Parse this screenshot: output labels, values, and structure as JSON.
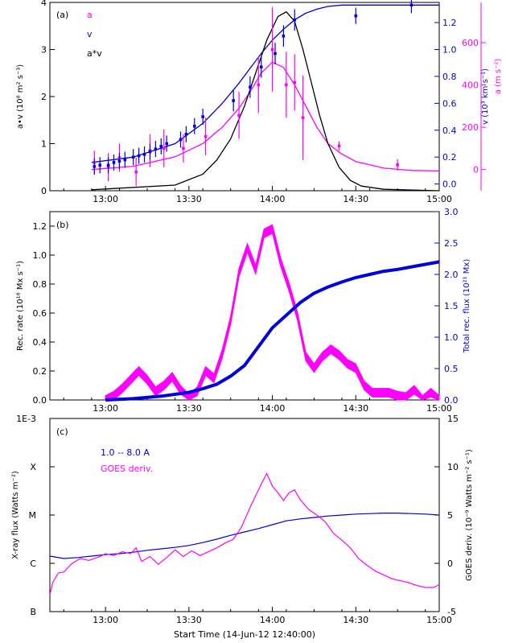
{
  "colors": {
    "magenta": "#ff00ff",
    "blue": "#0000dd",
    "black": "#000000"
  },
  "chart_data": [
    {
      "id": "a",
      "type": "scatter",
      "panel_label": "(a)",
      "ylabel_left": "a•v (10⁸ m² s⁻³)",
      "ylabel_right_blue": "v (10³ km s⁻¹)",
      "x_ticks": [
        "13:00",
        "13:30",
        "14:00",
        "14:30",
        "15:00"
      ],
      "xlim_min": [
        12.5,
        140
      ],
      "ylim_left": [
        0,
        4
      ],
      "yticks_left": [
        "0",
        "1",
        "2",
        "3",
        "4"
      ],
      "ylim_right_blue": [
        -0.05,
        1.35
      ],
      "yticks_right_blue": [
        "0.0",
        "0.2",
        "0.4",
        "0.6",
        "0.8",
        "1.0",
        "1.2"
      ],
      "ylim_right_magenta": [
        -100,
        790
      ],
      "yticks_right_magenta": [
        "0",
        "200",
        "400",
        "600"
      ],
      "right_magenta_partial_label": "a (m s⁻²)",
      "legend": [
        {
          "label": "a",
          "color": "#ff00ff"
        },
        {
          "label": "v",
          "color": "#0000dd"
        },
        {
          "label": "a*v",
          "color": "#000000"
        }
      ],
      "series": [
        {
          "name": "a",
          "kind": "points",
          "color": "#ff00ff",
          "x": [
            16,
            21,
            25,
            31,
            36,
            41,
            48,
            56,
            68,
            75,
            80,
            85,
            88,
            91,
            104,
            125
          ],
          "y": [
            0.6,
            0.5,
            0.7,
            0.4,
            0.85,
            0.9,
            0.9,
            1.15,
            1.6,
            2.25,
            3.0,
            2.25,
            2.3,
            1.55,
            0.95,
            0.55
          ],
          "err": [
            0.25,
            0.3,
            0.3,
            0.3,
            0.35,
            0.4,
            0.3,
            0.4,
            0.5,
            0.6,
            0.9,
            0.7,
            0.6,
            0.9,
            0.1,
            0.12
          ]
        },
        {
          "name": "v",
          "kind": "points",
          "color": "#0000dd",
          "x": [
            16,
            18,
            21,
            23,
            25,
            27,
            30,
            32,
            34,
            36,
            38,
            40,
            42,
            47,
            49,
            52,
            55,
            66,
            72,
            76,
            81,
            84,
            88,
            110,
            130
          ],
          "y": [
            0.13,
            0.14,
            0.14,
            0.16,
            0.17,
            0.18,
            0.2,
            0.21,
            0.22,
            0.24,
            0.26,
            0.28,
            0.3,
            0.33,
            0.37,
            0.43,
            0.5,
            0.62,
            0.72,
            0.87,
            0.97,
            1.1,
            1.22,
            1.25,
            1.33
          ],
          "err": [
            0.06,
            0.06,
            0.06,
            0.06,
            0.06,
            0.06,
            0.06,
            0.06,
            0.06,
            0.06,
            0.06,
            0.06,
            0.06,
            0.06,
            0.06,
            0.06,
            0.06,
            0.08,
            0.08,
            0.08,
            0.08,
            0.08,
            0.08,
            0.06,
            0.06
          ]
        },
        {
          "name": "a",
          "kind": "curve",
          "color": "#ff00ff",
          "x": [
            15,
            30,
            45,
            55,
            62,
            68,
            72,
            76,
            80,
            84,
            88,
            92,
            96,
            100,
            105,
            110,
            120,
            130,
            140
          ],
          "y": [
            0.45,
            0.52,
            0.72,
            1.0,
            1.35,
            1.75,
            2.1,
            2.5,
            2.73,
            2.62,
            2.25,
            1.8,
            1.35,
            1.0,
            0.78,
            0.62,
            0.48,
            0.43,
            0.42
          ]
        },
        {
          "name": "v",
          "kind": "curve",
          "color": "#0000dd",
          "x": [
            15,
            30,
            45,
            55,
            62,
            68,
            72,
            76,
            80,
            84,
            88,
            92,
            96,
            100,
            105,
            110,
            120,
            130,
            140
          ],
          "y": [
            0.16,
            0.2,
            0.3,
            0.45,
            0.6,
            0.75,
            0.86,
            0.97,
            1.07,
            1.15,
            1.22,
            1.27,
            1.3,
            1.32,
            1.33,
            1.33,
            1.33,
            1.33,
            1.33
          ]
        },
        {
          "name": "a*v",
          "kind": "curve",
          "color": "#000000",
          "x": [
            15,
            45,
            55,
            60,
            65,
            70,
            74,
            78,
            82,
            85,
            88,
            91,
            94,
            97,
            100,
            104,
            108,
            112,
            120,
            140
          ],
          "y": [
            0.02,
            0.12,
            0.35,
            0.65,
            1.1,
            1.8,
            2.5,
            3.2,
            3.7,
            3.8,
            3.6,
            3.0,
            2.3,
            1.6,
            1.0,
            0.5,
            0.22,
            0.1,
            0.03,
            0.0
          ]
        }
      ]
    },
    {
      "id": "b",
      "type": "line",
      "panel_label": "(b)",
      "ylabel_left": "Rec. rate (10¹⁸ Mx s⁻¹)",
      "ylabel_right": "Total rec. flux (10²¹ Mx)",
      "x_ticks": [
        "13:00",
        "13:30",
        "14:00",
        "14:30",
        "15:00"
      ],
      "ylim_left": [
        0,
        1.3
      ],
      "yticks_left": [
        "0.0",
        "0.2",
        "0.4",
        "0.6",
        "0.8",
        "1.0",
        "1.2"
      ],
      "ylim_right": [
        0,
        3.0
      ],
      "yticks_right": [
        "0.0",
        "0.5",
        "1.0",
        "1.5",
        "2.0",
        "2.5",
        "3.0"
      ],
      "series": [
        {
          "name": "Rec. rate",
          "color": "#ff00ff",
          "x": [
            20,
            23,
            26,
            29,
            32,
            35,
            38,
            41,
            44,
            47,
            50,
            53,
            56,
            59,
            62,
            65,
            68,
            71,
            74,
            77,
            80,
            83,
            86,
            89,
            92,
            95,
            98,
            101,
            104,
            107,
            110,
            113,
            116,
            119,
            122,
            125,
            128,
            131,
            134,
            137,
            140
          ],
          "y": [
            0.0,
            0.03,
            0.08,
            0.14,
            0.2,
            0.14,
            0.06,
            0.1,
            0.16,
            0.07,
            0.01,
            0.06,
            0.2,
            0.15,
            0.32,
            0.55,
            0.88,
            1.05,
            0.9,
            1.15,
            1.18,
            0.95,
            0.78,
            0.58,
            0.3,
            0.22,
            0.3,
            0.35,
            0.31,
            0.25,
            0.22,
            0.1,
            0.05,
            0.05,
            0.05,
            0.03,
            0.02,
            0.07,
            0.0,
            0.05,
            0.0
          ],
          "band": 0.03
        },
        {
          "name": "Total rec. flux",
          "color": "#0000dd",
          "x": [
            20,
            30,
            40,
            50,
            55,
            60,
            65,
            70,
            75,
            80,
            85,
            90,
            95,
            100,
            105,
            110,
            115,
            120,
            125,
            130,
            135,
            140
          ],
          "y": [
            0.0,
            0.02,
            0.06,
            0.12,
            0.18,
            0.25,
            0.38,
            0.55,
            0.85,
            1.15,
            1.35,
            1.55,
            1.7,
            1.8,
            1.88,
            1.95,
            2.0,
            2.05,
            2.08,
            2.12,
            2.16,
            2.2
          ]
        }
      ]
    },
    {
      "id": "c",
      "type": "line",
      "panel_label": "(c)",
      "ylabel_left": "X-ray flux (Watts m⁻²)",
      "ylabel_right": "GOES deriv. (10⁻⁹ Watts m⁻² s⁻¹)",
      "xlabel": "Start Time (14-Jun-12 12:40:00)",
      "x_ticks": [
        "13:00",
        "13:30",
        "14:00",
        "14:30",
        "15:00"
      ],
      "yticks_left": [
        "B",
        "C",
        "M",
        "X",
        "1E-3"
      ],
      "ylim_left_log": [
        -7,
        -3
      ],
      "ylim_right": [
        -5,
        15
      ],
      "yticks_right": [
        "-5",
        "0",
        "5",
        "10",
        "15"
      ],
      "legend": [
        {
          "label": "1.0 -- 8.0 A",
          "color": "#0000dd",
          "dashed": true
        },
        {
          "label": "GOES deriv.",
          "color": "#ff00ff"
        }
      ],
      "series": [
        {
          "name": "1.0 -- 8.0 A",
          "color": "#0000dd",
          "x": [
            0,
            5,
            10,
            15,
            20,
            25,
            30,
            35,
            40,
            45,
            50,
            55,
            60,
            65,
            70,
            75,
            80,
            85,
            90,
            95,
            100,
            105,
            110,
            115,
            120,
            125,
            130,
            135,
            140
          ],
          "y": [
            -5.85,
            -5.9,
            -5.88,
            -5.85,
            -5.82,
            -5.8,
            -5.77,
            -5.73,
            -5.7,
            -5.67,
            -5.63,
            -5.57,
            -5.5,
            -5.42,
            -5.35,
            -5.28,
            -5.2,
            -5.12,
            -5.08,
            -5.05,
            -5.02,
            -5.0,
            -4.98,
            -4.97,
            -4.96,
            -4.96,
            -4.97,
            -4.98,
            -5.0
          ]
        },
        {
          "name": "GOES deriv.",
          "color": "#ff00ff",
          "x": [
            0,
            1,
            3,
            5,
            8,
            11,
            14,
            18,
            20,
            23,
            26,
            29,
            31,
            33,
            36,
            39,
            42,
            45,
            48,
            51,
            54,
            57,
            60,
            63,
            66,
            69,
            72,
            74,
            76,
            78,
            80,
            82,
            84,
            86,
            88,
            90,
            93,
            96,
            99,
            102,
            105,
            108,
            111,
            114,
            117,
            120,
            123,
            126,
            129,
            132,
            135,
            138,
            140
          ],
          "y": [
            -3.3,
            -2.0,
            -1.0,
            -0.9,
            0.0,
            0.5,
            0.3,
            0.7,
            1.0,
            0.8,
            1.2,
            1.0,
            1.6,
            0.2,
            0.7,
            -0.1,
            0.6,
            1.4,
            0.7,
            1.3,
            0.8,
            1.2,
            1.6,
            2.1,
            2.5,
            3.8,
            5.8,
            7.0,
            8.2,
            9.3,
            8.0,
            7.3,
            6.5,
            7.3,
            7.6,
            6.6,
            5.6,
            5.0,
            4.3,
            3.1,
            2.4,
            1.6,
            0.5,
            -0.2,
            -0.8,
            -1.2,
            -1.6,
            -1.8,
            -2.0,
            -2.3,
            -2.5,
            -2.5,
            -2.2
          ]
        }
      ]
    }
  ]
}
